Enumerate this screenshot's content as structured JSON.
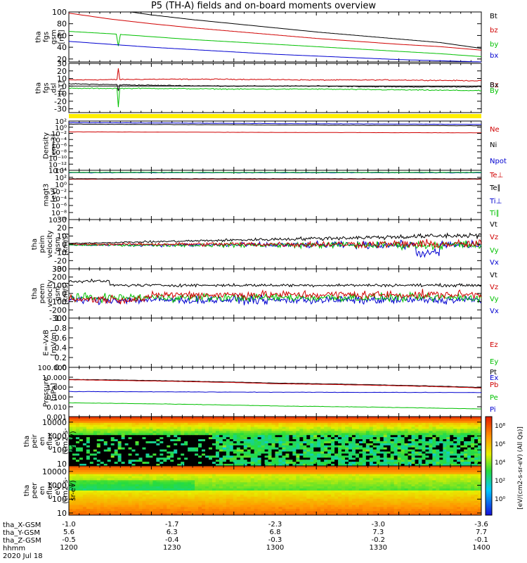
{
  "title": "P5 (TH-A) fields and on-board moments overview",
  "chart_data": [
    {
      "type": "line",
      "panel": "fgs_gsm_mag",
      "ylabel": [
        "tha",
        "fgs",
        "gsm",
        "[nT]"
      ],
      "ylim": [
        15,
        100
      ],
      "yticks": [
        20,
        40,
        60,
        80,
        100
      ],
      "series": [
        {
          "name": "Bt",
          "color": "#000000",
          "x": [
            0,
            0.1,
            0.2,
            0.3,
            0.4,
            0.5,
            0.6,
            0.7,
            0.8,
            0.9,
            1.0
          ],
          "values": [
            118,
            105,
            95,
            87,
            80,
            73,
            66,
            60,
            54,
            48,
            38
          ]
        },
        {
          "name": "bz",
          "color": "#d00000",
          "x": [
            0,
            0.1,
            0.2,
            0.3,
            0.4,
            0.5,
            0.6,
            0.7,
            0.8,
            0.9,
            1.0
          ],
          "values": [
            98,
            88,
            80,
            73,
            67,
            61,
            55,
            50,
            45,
            41,
            35
          ]
        },
        {
          "name": "by",
          "color": "#00c000",
          "x": [
            0,
            0.1,
            0.2,
            0.3,
            0.4,
            0.5,
            0.6,
            0.7,
            0.8,
            0.9,
            1.0
          ],
          "values": [
            67,
            63,
            58,
            53,
            49,
            45,
            41,
            37,
            33,
            29,
            24
          ]
        },
        {
          "name": "bx",
          "color": "#0000d0",
          "x": [
            0,
            0.1,
            0.2,
            0.3,
            0.4,
            0.5,
            0.6,
            0.7,
            0.8,
            0.9,
            1.0
          ],
          "values": [
            50,
            45,
            40,
            36,
            32,
            28,
            25,
            22,
            19,
            17,
            15
          ]
        }
      ]
    },
    {
      "type": "line",
      "panel": "fgs_dsl",
      "ylabel": [
        "tha",
        "fgs",
        "dsl",
        "[nT]"
      ],
      "ylim": [
        -35,
        30
      ],
      "yticks": [
        -30,
        -20,
        -10,
        0,
        10,
        20,
        30
      ],
      "series": [
        {
          "name": "Bz",
          "color": "#d00000",
          "x": [
            0,
            0.2,
            0.4,
            0.6,
            0.8,
            1.0
          ],
          "values": [
            8,
            9,
            9,
            8,
            8,
            7
          ]
        },
        {
          "name": "Bx",
          "color": "#000000",
          "x": [
            0,
            0.2,
            0.4,
            0.6,
            0.8,
            1.0
          ],
          "values": [
            3,
            1,
            0,
            0,
            -1,
            -1
          ]
        },
        {
          "name": "By",
          "color": "#00c000",
          "x": [
            0,
            0.2,
            0.4,
            0.6,
            0.8,
            1.0
          ],
          "values": [
            -3,
            -3,
            -4,
            -4,
            -5,
            -6
          ]
        }
      ]
    },
    {
      "type": "line",
      "panel": "density",
      "ylabel": [
        "Density",
        "[cm-3]"
      ],
      "ylog": true,
      "ylim": [
        1e-14,
        100.0
      ],
      "ytick_labels": [
        "10⁻¹⁴",
        "10⁻¹²",
        "10⁻¹⁰",
        "10⁻⁸",
        "10⁻⁶",
        "10⁻⁴",
        "10⁻²",
        "10⁰",
        "10²"
      ],
      "series": [
        {
          "name": "Ne",
          "color": "#d00000",
          "x": [
            0,
            0.5,
            1.0
          ],
          "values": [
            0.03,
            0.02,
            0.015
          ]
        },
        {
          "name": "Ni",
          "color": "#000000",
          "x": [
            0,
            0.5,
            1.0
          ],
          "values": [
            10,
            5,
            3
          ]
        },
        {
          "name": "Npot",
          "color": "#0000d0",
          "x": [
            0,
            0.5,
            1.0
          ],
          "values": [
            30,
            15,
            8
          ]
        }
      ]
    },
    {
      "type": "line",
      "panel": "temperature",
      "ylabel": [
        "magt3",
        "[eV]"
      ],
      "ylog": true,
      "ylim": [
        1e-10,
        10000.0
      ],
      "ytick_labels": [
        "10⁻¹⁰",
        "10⁻⁸",
        "10⁻⁶",
        "10⁻⁴",
        "10⁻²",
        "10⁰",
        "10²",
        "10⁴"
      ],
      "series": [
        {
          "name": "Te⊥",
          "color": "#d00000",
          "x": [
            0,
            1.0
          ],
          "values": [
            30,
            30
          ]
        },
        {
          "name": "Te∥",
          "color": "#000000",
          "x": [
            0,
            1.0
          ],
          "values": [
            40,
            40
          ]
        },
        {
          "name": "Ti⊥",
          "color": "#0000d0",
          "x": [
            0,
            1.0
          ],
          "values": [
            2000,
            2000
          ]
        },
        {
          "name": "Ti∥",
          "color": "#00c000",
          "x": [
            0,
            1.0
          ],
          "values": [
            2500,
            2500
          ]
        }
      ]
    },
    {
      "type": "line",
      "panel": "peim_velocity",
      "ylabel": [
        "tha",
        "peim",
        "velocity",
        "gsm",
        "[km/s]"
      ],
      "ylim": [
        -30,
        30
      ],
      "yticks": [
        -30,
        -20,
        -10,
        0,
        10,
        20,
        30
      ],
      "series": [
        {
          "name": "Vt",
          "color": "#000000"
        },
        {
          "name": "Vz",
          "color": "#d00000"
        },
        {
          "name": "Vy",
          "color": "#00c000"
        },
        {
          "name": "Vx",
          "color": "#0000d0"
        }
      ]
    },
    {
      "type": "line",
      "panel": "peem_velocity",
      "ylabel": [
        "tha",
        "peem",
        "velocity",
        "gsm",
        "[km/s]"
      ],
      "ylim": [
        -300,
        300
      ],
      "yticks": [
        -300,
        -200,
        -100,
        0,
        100,
        200,
        300
      ],
      "series": [
        {
          "name": "Vt",
          "color": "#000000"
        },
        {
          "name": "Vz",
          "color": "#d00000"
        },
        {
          "name": "Vy",
          "color": "#00c000"
        },
        {
          "name": "Vx",
          "color": "#0000d0"
        }
      ]
    },
    {
      "type": "line",
      "panel": "efield",
      "ylabel": [
        "E=-VxB",
        "[mV/m]"
      ],
      "ylim": [
        0,
        1
      ],
      "yticks": [
        0.0,
        0.2,
        0.4,
        0.6,
        0.8,
        1.0
      ],
      "series": [
        {
          "name": "Ez",
          "color": "#d00000"
        },
        {
          "name": "Ey",
          "color": "#00c000"
        },
        {
          "name": "Ex",
          "color": "#0000d0"
        }
      ]
    },
    {
      "type": "line",
      "panel": "pressure",
      "ylabel": [
        "Pressure",
        "[nPa]"
      ],
      "ylog": true,
      "ylim": [
        0.001,
        100
      ],
      "ytick_labels": [
        "0.001",
        "0.010",
        "0.100",
        "1.000",
        "10.000",
        "100.000"
      ],
      "series": [
        {
          "name": "Pt",
          "color": "#000000",
          "x": [
            0,
            0.5,
            1.0
          ],
          "values": [
            6,
            2.5,
            0.9
          ]
        },
        {
          "name": "Pb",
          "color": "#d00000",
          "x": [
            0,
            0.5,
            1.0
          ],
          "values": [
            5.5,
            2.2,
            0.8
          ]
        },
        {
          "name": "Pe",
          "color": "#00c000",
          "x": [
            0,
            0.5,
            1.0
          ],
          "values": [
            0.025,
            0.012,
            0.006
          ]
        },
        {
          "name": "Pi",
          "color": "#0000d0",
          "x": [
            0,
            0.5,
            1.0
          ],
          "values": [
            0.35,
            0.3,
            0.28
          ]
        }
      ]
    },
    {
      "type": "heatmap",
      "panel": "peir_eflux",
      "ylabel": [
        "tha",
        "peir",
        "en",
        "eflux",
        "eV",
        "(cm2-s-",
        "sr-eV)"
      ],
      "ylog": true,
      "ylim": [
        7,
        25000
      ],
      "ytick_labels": [
        "10",
        "100",
        "1000",
        "10000"
      ]
    },
    {
      "type": "heatmap",
      "panel": "peer_eflux",
      "ylabel": [
        "tha",
        "peer",
        "en",
        "eflux",
        "eV",
        "(cm2-s-",
        "sr-eV)"
      ],
      "ylog": true,
      "ylim": [
        7,
        25000
      ],
      "ytick_labels": [
        "10",
        "100",
        "1000",
        "10000"
      ]
    }
  ],
  "colorbar": {
    "label": "[eV/(cm2-s-sr-eV) (All Qs)]",
    "ticks": [
      "10⁸",
      "10⁶",
      "10⁴",
      "10²",
      "10⁰"
    ]
  },
  "xaxis": {
    "rows": [
      {
        "label": "tha_X-GSM",
        "values": [
          "-1.0",
          "-1.7",
          "-2.3",
          "-3.0",
          "-3.6"
        ]
      },
      {
        "label": "tha_Y-GSM",
        "values": [
          "5.6",
          "6.3",
          "6.8",
          "7.3",
          "7.7"
        ]
      },
      {
        "label": "tha_Z-GSM",
        "values": [
          "-0.5",
          "-0.4",
          "-0.3",
          "-0.2",
          "-0.1"
        ]
      },
      {
        "label": "hhmm",
        "values": [
          "1200",
          "1230",
          "1300",
          "1330",
          "1400"
        ]
      }
    ],
    "date": "2020 Jul 18"
  }
}
